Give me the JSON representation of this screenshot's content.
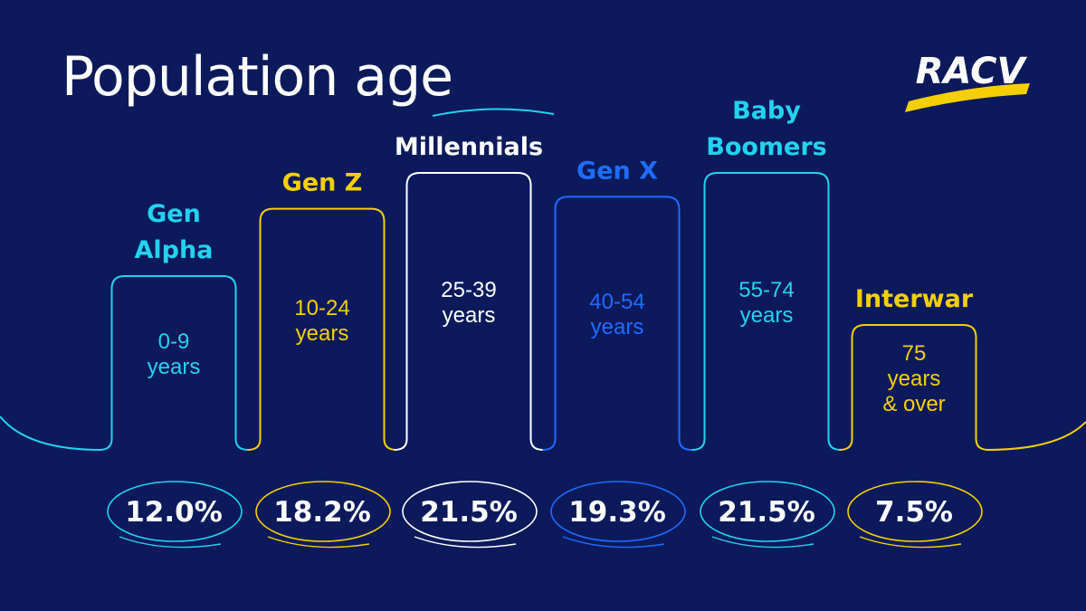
{
  "title": "Population age",
  "brand": {
    "logo_text": "RACV",
    "accent": "#f5d000"
  },
  "colors": {
    "background": "#0c1a5c"
  },
  "chart_data": {
    "type": "bar",
    "title": "Population age",
    "unit": "%",
    "categories": [
      "Gen Alpha",
      "Gen Z",
      "Millennials",
      "Gen X",
      "Baby Boomers",
      "Interwar"
    ],
    "label_lines": [
      [
        "Gen",
        "Alpha"
      ],
      [
        "Gen Z"
      ],
      [
        "Millennials"
      ],
      [
        "Gen X"
      ],
      [
        "Baby",
        "Boomers"
      ],
      [
        "Interwar"
      ]
    ],
    "age_ranges": [
      [
        "0-9",
        "years"
      ],
      [
        "10-24",
        "years"
      ],
      [
        "25-39",
        "years"
      ],
      [
        "40-54",
        "years"
      ],
      [
        "55-74",
        "years"
      ],
      [
        "75",
        "years",
        "& over"
      ]
    ],
    "values": [
      12.0,
      18.2,
      21.5,
      19.3,
      21.5,
      7.5
    ],
    "value_labels": [
      "12.0%",
      "18.2%",
      "21.5%",
      "19.3%",
      "21.5%",
      "7.5%"
    ],
    "colors": [
      "#22d3ee",
      "#f5d000",
      "#ffffff",
      "#1f6bff",
      "#22d3ee",
      "#f5d000"
    ]
  }
}
